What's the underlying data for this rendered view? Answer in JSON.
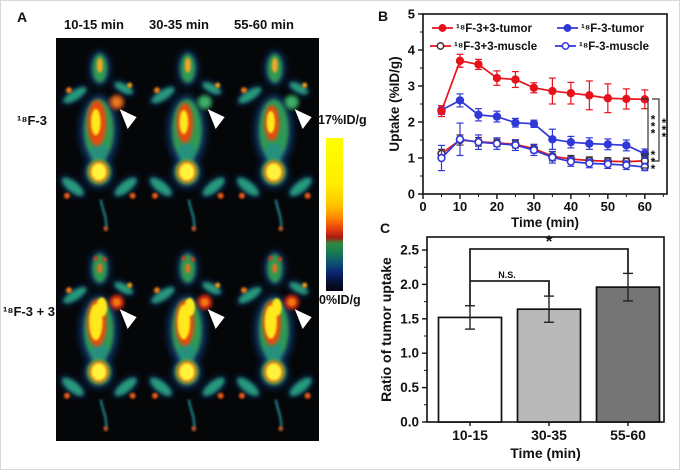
{
  "panelA": {
    "label": "A",
    "column_headers": [
      "10-15 min",
      "30-35 min",
      "55-60 min"
    ],
    "row_labels": [
      "¹⁸F-3",
      "¹⁸F-3 + 3"
    ],
    "colorbar": {
      "top_label": "17%ID/g",
      "bottom_label": "0%ID/g"
    },
    "tumor_marker_icon": "white-arrowhead"
  },
  "panelB": {
    "label": "B"
  },
  "panelC": {
    "label": "C"
  },
  "chart_data": [
    {
      "panel": "B",
      "type": "line",
      "xlabel": "Time (min)",
      "ylabel": "Uptake (%ID/g)",
      "xlim": [
        0,
        66
      ],
      "ylim": [
        0,
        5
      ],
      "xticks": [
        0,
        10,
        20,
        30,
        40,
        50,
        60
      ],
      "yticks": [
        0,
        1,
        2,
        3,
        4,
        5
      ],
      "grid": false,
      "legend_position": "top-inside",
      "x": [
        5,
        10,
        15,
        20,
        25,
        30,
        35,
        40,
        45,
        50,
        55,
        60
      ],
      "series": [
        {
          "name": "¹⁸F-3+3-muscle",
          "color": "#e8121c",
          "marker": "open-circle",
          "marker_stroke": "#463028",
          "values": [
            1.12,
            1.5,
            1.45,
            1.42,
            1.38,
            1.26,
            1.05,
            0.97,
            0.93,
            0.91,
            0.9,
            0.92
          ],
          "errors": [
            0.12,
            0.14,
            0.12,
            0.1,
            0.1,
            0.12,
            0.13,
            0.1,
            0.1,
            0.1,
            0.1,
            0.1
          ]
        },
        {
          "name": "¹⁸F-3-muscle",
          "color": "#3138d8",
          "marker": "open-circle",
          "marker_stroke": "#3138d8",
          "values": [
            1.0,
            1.52,
            1.44,
            1.4,
            1.36,
            1.22,
            1.02,
            0.9,
            0.85,
            0.83,
            0.8,
            0.75
          ],
          "errors": [
            0.35,
            0.45,
            0.2,
            0.16,
            0.15,
            0.15,
            0.16,
            0.13,
            0.12,
            0.12,
            0.12,
            0.1
          ]
        },
        {
          "name": "¹⁸F-3-tumor",
          "color": "#3138d8",
          "marker": "filled-circle",
          "marker_stroke": "#3138d8",
          "values": [
            2.33,
            2.6,
            2.2,
            2.15,
            1.98,
            1.95,
            1.52,
            1.44,
            1.4,
            1.38,
            1.35,
            1.12
          ],
          "errors": [
            0.12,
            0.18,
            0.17,
            0.15,
            0.12,
            0.1,
            0.28,
            0.16,
            0.16,
            0.15,
            0.15,
            0.13
          ]
        },
        {
          "name": "¹⁸F-3+3-tumor",
          "color": "#e8121c",
          "marker": "filled-circle",
          "marker_stroke": "#e8121c",
          "values": [
            2.3,
            3.7,
            3.6,
            3.22,
            3.18,
            2.95,
            2.86,
            2.8,
            2.74,
            2.66,
            2.64,
            2.63
          ],
          "errors": [
            0.15,
            0.18,
            0.14,
            0.2,
            0.22,
            0.14,
            0.36,
            0.3,
            0.4,
            0.4,
            0.28,
            0.26
          ]
        }
      ],
      "legend_order": [
        "¹⁸F-3+3-tumor",
        "¹⁸F-3-tumor",
        "¹⁸F-3+3-muscle",
        "¹⁸F-3-muscle"
      ],
      "significance": [
        {
          "between": [
            "¹⁸F-3+3-tumor",
            "¹⁸F-3-tumor"
          ],
          "label": "***"
        },
        {
          "between": [
            "¹⁸F-3+3-tumor",
            "¹⁸F-3+3-muscle"
          ],
          "label": "***"
        },
        {
          "between": [
            "¹⁸F-3-tumor",
            "¹⁸F-3-muscle"
          ],
          "label": "***"
        }
      ]
    },
    {
      "panel": "C",
      "type": "bar",
      "xlabel": "Time (min)",
      "ylabel": "Ratio of tumor uptake",
      "categories": [
        "10-15",
        "30-35",
        "55-60"
      ],
      "values": [
        1.52,
        1.64,
        1.96
      ],
      "errors": [
        0.17,
        0.19,
        0.2
      ],
      "bar_colors": [
        "#ffffff",
        "#b9b9b9",
        "#757575"
      ],
      "ylim": [
        0,
        2.69
      ],
      "yticks": [
        0.0,
        0.5,
        1.0,
        1.5,
        2.0,
        2.5
      ],
      "grid": false,
      "significance": [
        {
          "pair": [
            0,
            1
          ],
          "label": "N.S."
        },
        {
          "pair": [
            0,
            2
          ],
          "label": "*"
        }
      ]
    }
  ]
}
